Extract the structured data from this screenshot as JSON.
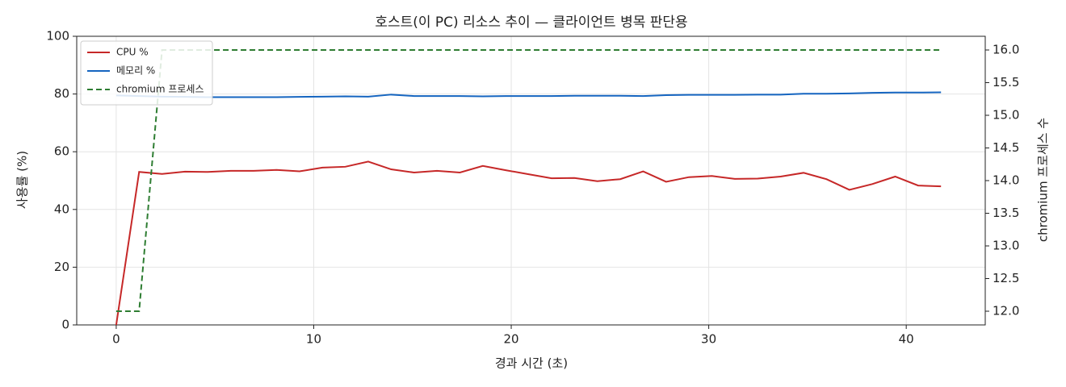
{
  "chart_data": {
    "type": "line",
    "title": "호스트(이 PC) 리소스 추이 — 클라이언트 병목 판단용",
    "x_label": "경과 시간 (초)",
    "y_label": "사용률 (%)",
    "y2_label": "chromium 프로세스 수",
    "x": [
      0,
      1.16,
      2.32,
      3.48,
      4.64,
      5.8,
      6.96,
      8.12,
      9.28,
      10.44,
      11.6,
      12.76,
      13.92,
      15.08,
      16.24,
      17.4,
      18.56,
      19.72,
      20.88,
      22.04,
      23.2,
      24.36,
      25.52,
      26.68,
      27.84,
      29,
      30.16,
      31.32,
      32.48,
      33.64,
      34.8,
      35.96,
      37.12,
      38.28,
      39.44,
      40.6,
      41.76
    ],
    "series": [
      {
        "name": "CPU %",
        "color": "#c62828",
        "values": [
          0,
          53,
          52.3,
          53.1,
          53,
          53.4,
          53.4,
          53.7,
          53.2,
          54.5,
          54.8,
          56.6,
          53.9,
          52.8,
          53.4,
          52.8,
          55.1,
          53.6,
          52.2,
          50.8,
          50.9,
          49.8,
          50.5,
          53.2,
          49.6,
          51.2,
          51.6,
          50.6,
          50.7,
          51.4,
          52.7,
          50.5,
          46.8,
          48.8,
          51.4,
          48.3,
          48.0
        ]
      },
      {
        "name": "메모리 %",
        "color": "#1565c0",
        "values": [
          79.5,
          79.3,
          79.1,
          79,
          78.9,
          78.9,
          78.9,
          78.9,
          79,
          79.1,
          79.2,
          79.1,
          79.8,
          79.3,
          79.3,
          79.3,
          79.2,
          79.3,
          79.3,
          79.3,
          79.4,
          79.4,
          79.4,
          79.3,
          79.6,
          79.7,
          79.7,
          79.7,
          79.8,
          79.8,
          80.1,
          80.1,
          80.2,
          80.4,
          80.5,
          80.5,
          80.6
        ]
      },
      {
        "name": "chromium 프로세스",
        "color": "#2e7d32",
        "dashed": true,
        "axis": "y2",
        "values": [
          12,
          12,
          16,
          16,
          16,
          16,
          16,
          16,
          16,
          16,
          16,
          16,
          16,
          16,
          16,
          16,
          16,
          16,
          16,
          16,
          16,
          16,
          16,
          16,
          16,
          16,
          16,
          16,
          16,
          16,
          16,
          16,
          16,
          16,
          16,
          16,
          16
        ]
      }
    ],
    "xlim": [
      -2,
      44
    ],
    "xticks": [
      0,
      10,
      20,
      30,
      40
    ],
    "ylim": [
      0,
      100
    ],
    "yticks": [
      0,
      20,
      40,
      60,
      80,
      100
    ],
    "y2lim": [
      11.79,
      16.21
    ],
    "y2ticks": [
      {
        "value": 12,
        "label": "12.0"
      },
      {
        "value": 12.5,
        "label": "12.5"
      },
      {
        "value": 13,
        "label": "13.0"
      },
      {
        "value": 13.5,
        "label": "13.5"
      },
      {
        "value": 14,
        "label": "14.0"
      },
      {
        "value": 14.5,
        "label": "14.5"
      },
      {
        "value": 15,
        "label": "15.0"
      },
      {
        "value": 15.5,
        "label": "15.5"
      },
      {
        "value": 16,
        "label": "16.0"
      }
    ],
    "grid": true,
    "legend": "upper-left"
  }
}
